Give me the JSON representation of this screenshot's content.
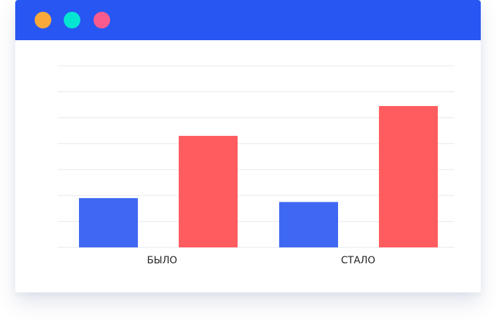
{
  "window": {
    "titlebar_color": "#2756f2",
    "controls": [
      {
        "name": "orange-dot",
        "color": "#f8a93a"
      },
      {
        "name": "teal-dot",
        "color": "#05e6d2"
      },
      {
        "name": "pink-dot",
        "color": "#fa5b8e"
      }
    ]
  },
  "chart_data": {
    "type": "bar",
    "categories": [
      "БЫЛО",
      "СТАЛО"
    ],
    "series": [
      {
        "color": "#3f68f2",
        "values": [
          1.9,
          1.75
        ]
      },
      {
        "color": "#ff5c5f",
        "values": [
          4.3,
          5.45
        ]
      }
    ],
    "ylim": [
      0,
      7
    ],
    "grid": true,
    "xlabel": "",
    "ylabel": "",
    "title": ""
  }
}
